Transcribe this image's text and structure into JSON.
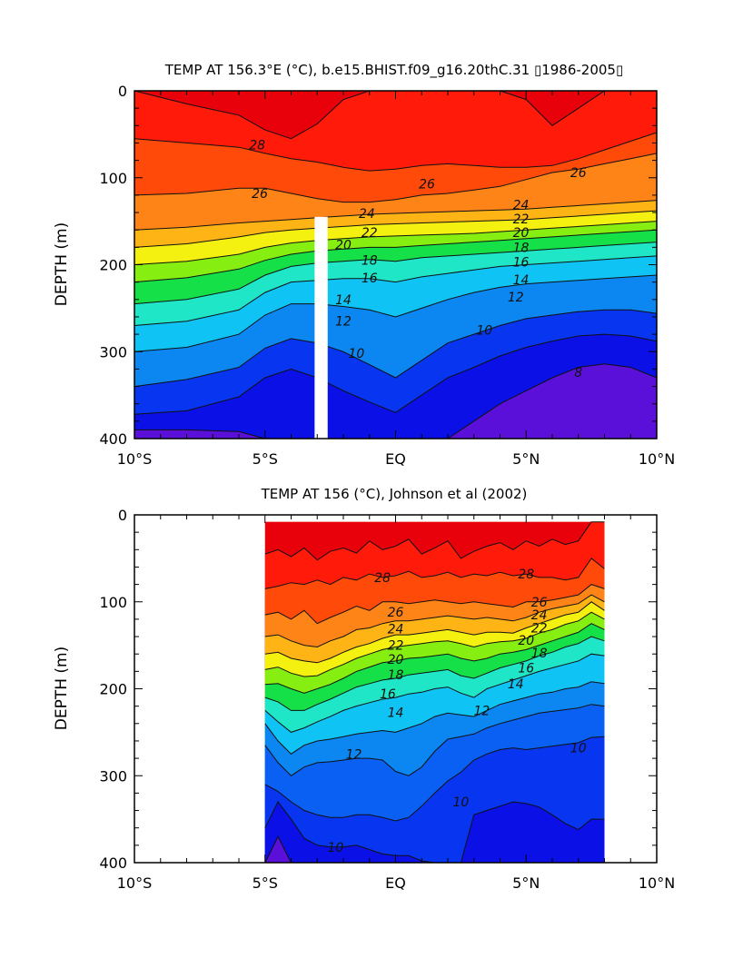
{
  "chart_data": [
    {
      "type": "heatmap",
      "title": "TEMP AT 156.3°E (°C), b.e15.BHIST.f09_g16.20thC.31 ▯1986-2005▯",
      "ylabel": "DEPTH (m)",
      "xlabel": "",
      "xlim": [
        -10,
        10
      ],
      "ylim": [
        400,
        0
      ],
      "x_ticks": [
        -10,
        -5,
        0,
        5,
        10
      ],
      "x_tick_labels": [
        "10°S",
        "5°S",
        "EQ",
        "5°N",
        "10°N"
      ],
      "y_ticks": [
        0,
        100,
        200,
        300,
        400
      ],
      "y_tick_labels": [
        "0",
        "100",
        "200",
        "300",
        "400"
      ],
      "x_data_range": [
        -10,
        10
      ],
      "masked_band": {
        "x_from": -3.1,
        "x_to": -2.6,
        "depth_from": 145,
        "depth_to": 400
      },
      "x_nodes": [
        -10,
        -8,
        -6,
        -5,
        -4,
        -3,
        -2,
        -1,
        0,
        1,
        2,
        3,
        4,
        5,
        6,
        7,
        8,
        9,
        10
      ],
      "isotherms": [
        {
          "value": 29,
          "depths": [
            0,
            15,
            28,
            45,
            55,
            38,
            10,
            0,
            0,
            0,
            0,
            0,
            0,
            10,
            40,
            20,
            0,
            0,
            0
          ]
        },
        {
          "value": 28,
          "depths": [
            55,
            60,
            65,
            72,
            78,
            82,
            88,
            92,
            90,
            86,
            84,
            86,
            88,
            88,
            86,
            78,
            68,
            58,
            48
          ]
        },
        {
          "value": 26,
          "depths": [
            120,
            118,
            112,
            112,
            118,
            124,
            128,
            128,
            125,
            120,
            118,
            114,
            110,
            102,
            94,
            90,
            84,
            78,
            72
          ]
        },
        {
          "value": 24,
          "depths": [
            160,
            157,
            152,
            150,
            148,
            146,
            144,
            142,
            141,
            140,
            139,
            138,
            137,
            136,
            134,
            132,
            130,
            128,
            126
          ]
        },
        {
          "value": 22,
          "depths": [
            180,
            176,
            168,
            163,
            160,
            158,
            156,
            154,
            153,
            152,
            151,
            150,
            149,
            148,
            146,
            144,
            142,
            140,
            138
          ]
        },
        {
          "value": 20,
          "depths": [
            200,
            196,
            188,
            180,
            175,
            172,
            170,
            168,
            167,
            166,
            165,
            164,
            162,
            160,
            158,
            156,
            154,
            152,
            150
          ]
        },
        {
          "value": 18,
          "depths": [
            220,
            215,
            205,
            195,
            188,
            184,
            182,
            180,
            180,
            178,
            176,
            174,
            172,
            170,
            168,
            166,
            164,
            162,
            160
          ]
        },
        {
          "value": 16,
          "depths": [
            245,
            240,
            228,
            212,
            202,
            198,
            196,
            194,
            196,
            192,
            190,
            188,
            186,
            184,
            182,
            180,
            178,
            176,
            174
          ]
        },
        {
          "value": 14,
          "depths": [
            270,
            265,
            252,
            232,
            220,
            218,
            216,
            216,
            220,
            214,
            210,
            206,
            202,
            200,
            198,
            196,
            194,
            192,
            190
          ]
        },
        {
          "value": 12,
          "depths": [
            300,
            295,
            280,
            258,
            245,
            245,
            248,
            252,
            260,
            250,
            240,
            232,
            226,
            222,
            220,
            218,
            216,
            214,
            212
          ]
        },
        {
          "value": 10,
          "depths": [
            340,
            332,
            318,
            296,
            285,
            290,
            300,
            315,
            330,
            310,
            290,
            280,
            270,
            262,
            258,
            254,
            252,
            252,
            256
          ]
        },
        {
          "value": 9,
          "depths": [
            372,
            368,
            352,
            330,
            320,
            330,
            345,
            358,
            370,
            350,
            330,
            318,
            305,
            295,
            288,
            282,
            280,
            282,
            288
          ]
        },
        {
          "value": 8,
          "depths": [
            390,
            390,
            392,
            400,
            400,
            400,
            400,
            400,
            400,
            400,
            400,
            380,
            360,
            345,
            330,
            318,
            314,
            318,
            330
          ]
        }
      ],
      "contour_labels": [
        {
          "text": "28",
          "x": -5.3,
          "depth": 62
        },
        {
          "text": "26",
          "x": -5.2,
          "depth": 118
        },
        {
          "text": "26",
          "x": 1.2,
          "depth": 107
        },
        {
          "text": "26",
          "x": 7.0,
          "depth": 94
        },
        {
          "text": "24",
          "x": -1.1,
          "depth": 141
        },
        {
          "text": "24",
          "x": 4.8,
          "depth": 131
        },
        {
          "text": "22",
          "x": -1.0,
          "depth": 163
        },
        {
          "text": "22",
          "x": 4.8,
          "depth": 147
        },
        {
          "text": "20",
          "x": -2.0,
          "depth": 177
        },
        {
          "text": "20",
          "x": 4.8,
          "depth": 163
        },
        {
          "text": "18",
          "x": -1.0,
          "depth": 195
        },
        {
          "text": "18",
          "x": 4.8,
          "depth": 180
        },
        {
          "text": "16",
          "x": -1.0,
          "depth": 215
        },
        {
          "text": "16",
          "x": 4.8,
          "depth": 197
        },
        {
          "text": "14",
          "x": -2.0,
          "depth": 240
        },
        {
          "text": "14",
          "x": 4.8,
          "depth": 217
        },
        {
          "text": "12",
          "x": -2.0,
          "depth": 265
        },
        {
          "text": "12",
          "x": 4.6,
          "depth": 237
        },
        {
          "text": "10",
          "x": -1.5,
          "depth": 302
        },
        {
          "text": "10",
          "x": 3.4,
          "depth": 275
        },
        {
          "text": "8",
          "x": 7.0,
          "depth": 324
        }
      ]
    },
    {
      "type": "heatmap",
      "title": "TEMP AT 156 (°C), Johnson et al (2002)",
      "ylabel": "DEPTH (m)",
      "xlabel": "",
      "xlim": [
        -10,
        10
      ],
      "ylim": [
        400,
        0
      ],
      "x_ticks": [
        -10,
        -5,
        0,
        5,
        10
      ],
      "x_tick_labels": [
        "10°S",
        "5°S",
        "EQ",
        "5°N",
        "10°N"
      ],
      "y_ticks": [
        0,
        100,
        200,
        300,
        400
      ],
      "y_tick_labels": [
        "0",
        "100",
        "200",
        "300",
        "400"
      ],
      "x_data_range": [
        -5,
        8
      ],
      "depth_data_range": [
        8,
        400
      ],
      "x_nodes": [
        -5,
        -4.5,
        -4,
        -3.5,
        -3,
        -2.5,
        -2,
        -1.5,
        -1,
        -0.5,
        0,
        0.5,
        1,
        1.5,
        2,
        2.5,
        3,
        3.5,
        4,
        4.5,
        5,
        5.5,
        6,
        6.5,
        7,
        7.5,
        8
      ],
      "isotherms": [
        {
          "value": 29,
          "depths": [
            45,
            40,
            48,
            38,
            52,
            42,
            38,
            44,
            30,
            40,
            36,
            28,
            45,
            38,
            30,
            50,
            42,
            36,
            32,
            40,
            30,
            36,
            28,
            34,
            30,
            8,
            8
          ]
        },
        {
          "value": 28,
          "depths": [
            85,
            82,
            78,
            80,
            75,
            80,
            72,
            75,
            68,
            72,
            70,
            65,
            72,
            70,
            66,
            72,
            68,
            70,
            66,
            70,
            68,
            72,
            72,
            75,
            72,
            50,
            62
          ]
        },
        {
          "value": 26,
          "depths": [
            115,
            112,
            120,
            110,
            125,
            118,
            112,
            105,
            110,
            100,
            100,
            102,
            100,
            98,
            100,
            102,
            100,
            102,
            104,
            106,
            100,
            100,
            98,
            95,
            92,
            80,
            85
          ]
        },
        {
          "value": 24,
          "depths": [
            140,
            138,
            145,
            150,
            152,
            145,
            140,
            132,
            130,
            125,
            122,
            122,
            120,
            118,
            116,
            118,
            120,
            118,
            120,
            122,
            118,
            112,
            108,
            105,
            102,
            92,
            100
          ]
        },
        {
          "value": 22,
          "depths": [
            160,
            158,
            165,
            168,
            170,
            165,
            158,
            152,
            148,
            142,
            138,
            138,
            136,
            134,
            132,
            135,
            138,
            135,
            135,
            136,
            130,
            125,
            120,
            115,
            112,
            100,
            110
          ]
        },
        {
          "value": 20,
          "depths": [
            178,
            175,
            182,
            186,
            185,
            178,
            172,
            165,
            160,
            155,
            152,
            150,
            148,
            146,
            145,
            148,
            152,
            148,
            146,
            145,
            142,
            136,
            132,
            126,
            122,
            112,
            120
          ]
        },
        {
          "value": 18,
          "depths": [
            195,
            194,
            200,
            205,
            200,
            195,
            188,
            180,
            175,
            170,
            168,
            165,
            164,
            162,
            160,
            165,
            168,
            165,
            160,
            158,
            155,
            150,
            145,
            140,
            135,
            125,
            132
          ]
        },
        {
          "value": 16,
          "depths": [
            210,
            215,
            225,
            225,
            218,
            212,
            205,
            198,
            194,
            190,
            188,
            184,
            182,
            180,
            178,
            185,
            188,
            182,
            176,
            172,
            168,
            162,
            158,
            152,
            148,
            140,
            145
          ]
        },
        {
          "value": 14,
          "depths": [
            225,
            238,
            250,
            245,
            238,
            232,
            225,
            220,
            216,
            212,
            210,
            206,
            204,
            200,
            198,
            205,
            210,
            200,
            195,
            190,
            185,
            180,
            176,
            172,
            168,
            160,
            162
          ]
        },
        {
          "value": 12,
          "depths": [
            240,
            260,
            275,
            265,
            260,
            258,
            255,
            252,
            250,
            248,
            250,
            245,
            240,
            232,
            228,
            230,
            232,
            225,
            218,
            214,
            210,
            206,
            204,
            200,
            198,
            192,
            194
          ]
        },
        {
          "value": 11,
          "depths": [
            265,
            285,
            300,
            290,
            285,
            284,
            282,
            280,
            280,
            282,
            295,
            300,
            290,
            272,
            258,
            255,
            252,
            245,
            240,
            236,
            232,
            228,
            226,
            224,
            222,
            218,
            220
          ]
        },
        {
          "value": 10,
          "depths": [
            310,
            318,
            330,
            340,
            345,
            348,
            348,
            345,
            345,
            348,
            352,
            348,
            335,
            320,
            306,
            296,
            282,
            275,
            270,
            268,
            270,
            268,
            266,
            264,
            262,
            256,
            255
          ]
        },
        {
          "value": 9,
          "depths": [
            360,
            330,
            350,
            372,
            380,
            382,
            382,
            380,
            385,
            390,
            392,
            392,
            398,
            400,
            400,
            400,
            345,
            340,
            335,
            330,
            332,
            336,
            345,
            355,
            362,
            350,
            350
          ]
        },
        {
          "value": 8,
          "depths": [
            400,
            370,
            400,
            400,
            400,
            400,
            400,
            400,
            400,
            400,
            400,
            400,
            400,
            400,
            400,
            400,
            400,
            400,
            400,
            400,
            400,
            400,
            400,
            400,
            400,
            400,
            400
          ]
        }
      ],
      "contour_labels": [
        {
          "text": "28",
          "x": -0.5,
          "depth": 72
        },
        {
          "text": "28",
          "x": 5.0,
          "depth": 68
        },
        {
          "text": "26",
          "x": 0.0,
          "depth": 112
        },
        {
          "text": "26",
          "x": 5.5,
          "depth": 100
        },
        {
          "text": "24",
          "x": 0.0,
          "depth": 131
        },
        {
          "text": "24",
          "x": 5.5,
          "depth": 115
        },
        {
          "text": "22",
          "x": 0.0,
          "depth": 150
        },
        {
          "text": "22",
          "x": 5.5,
          "depth": 130
        },
        {
          "text": "20",
          "x": 0.0,
          "depth": 166
        },
        {
          "text": "20",
          "x": 5.0,
          "depth": 144
        },
        {
          "text": "18",
          "x": 0.0,
          "depth": 184
        },
        {
          "text": "18",
          "x": 5.5,
          "depth": 159
        },
        {
          "text": "16",
          "x": -0.3,
          "depth": 206
        },
        {
          "text": "16",
          "x": 5.0,
          "depth": 176
        },
        {
          "text": "14",
          "x": 0.0,
          "depth": 227
        },
        {
          "text": "14",
          "x": 4.6,
          "depth": 194
        },
        {
          "text": "12",
          "x": 3.3,
          "depth": 225
        },
        {
          "text": "12",
          "x": -1.6,
          "depth": 275
        },
        {
          "text": "10",
          "x": 2.5,
          "depth": 330
        },
        {
          "text": "10",
          "x": 7.0,
          "depth": 268
        },
        {
          "text": "10",
          "x": -2.3,
          "depth": 382
        }
      ]
    }
  ],
  "colors": {
    "levels": [
      8,
      9,
      10,
      11,
      12,
      13,
      14,
      15,
      16,
      17,
      18,
      19,
      20,
      21,
      22,
      23,
      24,
      25,
      26,
      27,
      28,
      29
    ],
    "fills": [
      "#5a10d8",
      "#0a10e6",
      "#0835f0",
      "#0a60f2",
      "#0c86f0",
      "#09a6f2",
      "#0fc4f4",
      "#1ee0ec",
      "#1fe6c6",
      "#16e090",
      "#16e048",
      "#2ae81a",
      "#86ee10",
      "#c8f010",
      "#f4f010",
      "#ffd20a",
      "#ffb416",
      "#ff9a20",
      "#ff8418",
      "#ff6a10",
      "#ff4a0a",
      "#ff1a0a",
      "#e8000a"
    ],
    "mask": "#ffffff",
    "contour_line": "#111111"
  }
}
